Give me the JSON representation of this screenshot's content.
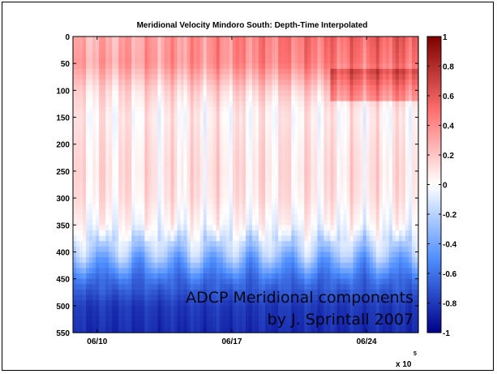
{
  "chart_data": {
    "type": "heatmap",
    "title": "Meridional Velocity Mindoro South: Depth-Time Interpolated",
    "xlabel": "",
    "ylabel": "",
    "x_tick_labels": [
      "06/10",
      "06/17",
      "06/24"
    ],
    "x_exponent_label": "x 10",
    "x_exponent_power": "5",
    "y_ticks": [
      0,
      50,
      100,
      150,
      200,
      250,
      300,
      350,
      400,
      450,
      500,
      550
    ],
    "y_range": [
      0,
      550
    ],
    "y_reversed": true,
    "colorbar": {
      "ticks": [
        1,
        0.8,
        0.6,
        0.4,
        0.2,
        0,
        -0.2,
        -0.4,
        -0.6,
        -0.8,
        -1
      ],
      "range": [
        -1,
        1
      ],
      "colormap": "blue-white-red",
      "low_color": "#00008b",
      "mid_color": "#ffffff",
      "high_color": "#7f0000"
    },
    "depth_profile": [
      {
        "depth": 0,
        "value": 0.25
      },
      {
        "depth": 50,
        "value": 0.3
      },
      {
        "depth": 100,
        "value": 0.12
      },
      {
        "depth": 150,
        "value": 0.05
      },
      {
        "depth": 200,
        "value": 0.08
      },
      {
        "depth": 250,
        "value": 0.1
      },
      {
        "depth": 300,
        "value": 0.08
      },
      {
        "depth": 350,
        "value": 0.0
      },
      {
        "depth": 400,
        "value": -0.25
      },
      {
        "depth": 450,
        "value": -0.6
      },
      {
        "depth": 500,
        "value": -0.8
      },
      {
        "depth": 550,
        "value": -0.85
      }
    ],
    "annotation": {
      "line1": "ADCP Meridional components",
      "line2": "by J. Sprintall 2007"
    }
  }
}
